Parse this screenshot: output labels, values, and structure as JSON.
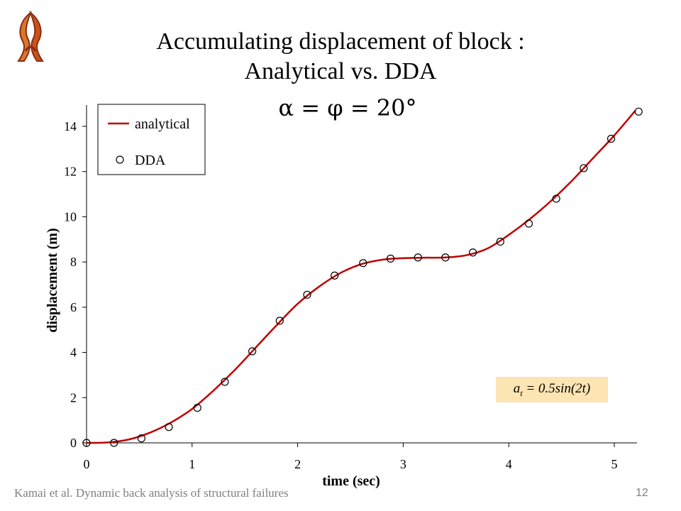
{
  "slide": {
    "title_line1": "Accumulating displacement of block :",
    "title_line2": "Analytical vs. DDA",
    "subtitle": "α = φ = 20°",
    "footer": "Kamai et al. Dynamic back analysis of structural failures",
    "page_number": "12",
    "annotation": {
      "prefix": "a",
      "subscript": "t",
      "expr": " = 0.5sin(2t)"
    },
    "logo": "university-logo-icon"
  },
  "colors": {
    "analytical_line": "#c00000",
    "annotation_bg": "#fce4b3",
    "footer_text": "#7f7f7f"
  },
  "chart_data": {
    "type": "line",
    "xlabel": "time (sec)",
    "ylabel": "displacement (m)",
    "xlim": [
      0,
      5.2
    ],
    "ylim": [
      0,
      15
    ],
    "xticks": [
      0,
      1,
      2,
      3,
      4,
      5
    ],
    "yticks": [
      0,
      2,
      4,
      6,
      8,
      10,
      12,
      14
    ],
    "grid": false,
    "legend_position": "top-left",
    "series": [
      {
        "name": "analytical",
        "style": "line",
        "x": [
          0,
          0.2,
          0.4,
          0.6,
          0.8,
          1.0,
          1.2,
          1.4,
          1.6,
          1.8,
          2.0,
          2.2,
          2.4,
          2.6,
          2.8,
          3.0,
          3.2,
          3.4,
          3.6,
          3.8,
          4.0,
          4.2,
          4.4,
          4.6,
          4.8,
          5.0,
          5.2
        ],
        "y": [
          0,
          0.02,
          0.15,
          0.45,
          0.9,
          1.5,
          2.3,
          3.2,
          4.2,
          5.2,
          6.15,
          6.9,
          7.5,
          7.9,
          8.1,
          8.17,
          8.19,
          8.2,
          8.3,
          8.6,
          9.2,
          9.9,
          10.7,
          11.6,
          12.6,
          13.6,
          14.7
        ]
      },
      {
        "name": "DDA",
        "style": "marker",
        "x": [
          0,
          0.26,
          0.52,
          0.78,
          1.05,
          1.31,
          1.57,
          1.83,
          2.09,
          2.35,
          2.62,
          2.88,
          3.14,
          3.4,
          3.66,
          3.92,
          4.19,
          4.45,
          4.71,
          4.97,
          5.23
        ],
        "y": [
          0,
          0.0,
          0.2,
          0.7,
          1.55,
          2.7,
          4.05,
          5.4,
          6.55,
          7.4,
          7.95,
          8.15,
          8.2,
          8.2,
          8.42,
          8.9,
          9.7,
          10.8,
          12.15,
          13.45,
          14.65
        ]
      }
    ]
  }
}
